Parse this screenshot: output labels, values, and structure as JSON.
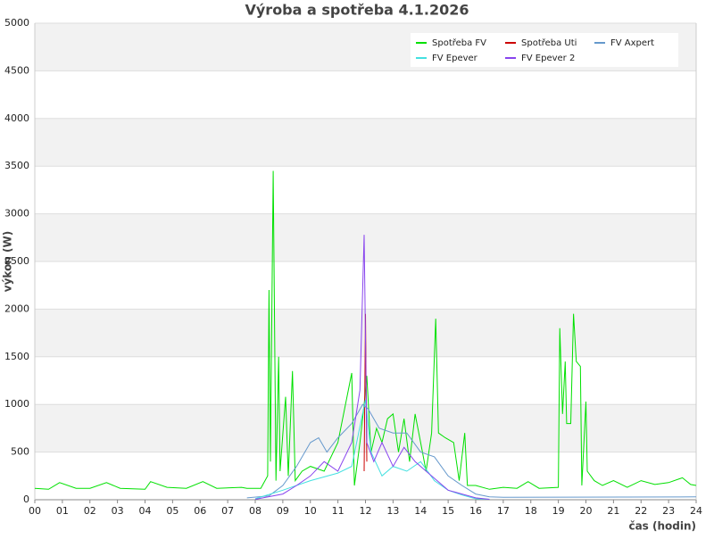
{
  "chart_data": {
    "type": "line",
    "title": "Výroba a spotřeba 4.1.2026",
    "x_label": "čas (hodin)",
    "y_label": "výkon (W)",
    "xlim": [
      0,
      24
    ],
    "ylim": [
      0,
      5000
    ],
    "xticks": [
      {
        "value": 0,
        "label": "00"
      },
      {
        "value": 1,
        "label": "01"
      },
      {
        "value": 2,
        "label": "02"
      },
      {
        "value": 3,
        "label": "03"
      },
      {
        "value": 4,
        "label": "04"
      },
      {
        "value": 5,
        "label": "05"
      },
      {
        "value": 6,
        "label": "06"
      },
      {
        "value": 7,
        "label": "07"
      },
      {
        "value": 8,
        "label": "08"
      },
      {
        "value": 9,
        "label": "09"
      },
      10,
      11,
      12,
      13,
      14,
      15,
      16,
      17,
      18,
      19,
      20,
      21,
      22,
      23,
      24
    ],
    "yticks": [
      0,
      500,
      1000,
      1500,
      2000,
      2500,
      3000,
      3500,
      4000,
      4500,
      5000
    ],
    "grid": true,
    "legend": "upper right",
    "series": [
      {
        "name": "Spotřeba FV",
        "color": "#00e000",
        "x": [
          0,
          0.5,
          0.9,
          1.5,
          2,
          2.6,
          3.1,
          4,
          4.2,
          4.8,
          5.5,
          6.1,
          6.6,
          7.5,
          7.7,
          8.2,
          8.45,
          8.5,
          8.55,
          8.65,
          8.75,
          8.85,
          8.9,
          9.1,
          9.2,
          9.35,
          9.45,
          9.7,
          10,
          10.5,
          11,
          11.5,
          11.6,
          11.8,
          11.95,
          12.05,
          12.2,
          12.4,
          12.6,
          12.8,
          13,
          13.2,
          13.4,
          13.6,
          13.8,
          14,
          14.2,
          14.4,
          14.55,
          14.65,
          14.9,
          15.2,
          15.4,
          15.6,
          15.7,
          16,
          16.5,
          17,
          17.5,
          17.9,
          18.3,
          19,
          19.05,
          19.15,
          19.25,
          19.3,
          19.45,
          19.55,
          19.65,
          19.8,
          19.85,
          20,
          20.05,
          20.3,
          20.6,
          21,
          21.5,
          22,
          22.5,
          23,
          23.5,
          23.8,
          24
        ],
        "values": [
          120,
          110,
          180,
          120,
          120,
          180,
          120,
          110,
          190,
          130,
          120,
          190,
          120,
          130,
          120,
          120,
          250,
          2200,
          400,
          3450,
          200,
          1500,
          300,
          1080,
          250,
          1350,
          200,
          300,
          350,
          300,
          600,
          1330,
          150,
          600,
          1000,
          1300,
          500,
          750,
          600,
          850,
          900,
          500,
          850,
          400,
          900,
          600,
          300,
          700,
          1900,
          700,
          650,
          600,
          200,
          700,
          150,
          150,
          110,
          130,
          120,
          190,
          120,
          130,
          1800,
          900,
          1450,
          800,
          800,
          1950,
          1450,
          1400,
          150,
          1030,
          300,
          200,
          150,
          200,
          130,
          200,
          160,
          180,
          230,
          160,
          150
        ]
      },
      {
        "name": "Spotřeba Uti",
        "color": "#cc0000",
        "x": [
          11.95,
          12,
          12.05
        ],
        "values": [
          300,
          1950,
          400
        ]
      },
      {
        "name": "FV Axpert",
        "color": "#6699cc",
        "x": [
          7.7,
          8.5,
          9,
          9.5,
          10,
          10.3,
          10.6,
          11,
          11.5,
          11.9,
          12.1,
          12.5,
          13,
          13.5,
          14,
          14.5,
          15,
          15.5,
          16,
          16.5,
          17,
          24
        ],
        "values": [
          20,
          40,
          150,
          350,
          600,
          650,
          500,
          650,
          800,
          1000,
          950,
          750,
          700,
          700,
          500,
          450,
          250,
          150,
          60,
          30,
          25,
          30
        ]
      },
      {
        "name": "FV Epever",
        "color": "#44e0e0",
        "x": [
          8,
          9,
          10,
          11,
          11.5,
          12,
          12.2,
          12.6,
          13,
          13.5,
          14,
          14.5,
          15,
          15.5,
          16,
          16.5
        ],
        "values": [
          10,
          100,
          200,
          280,
          350,
          1050,
          500,
          250,
          350,
          300,
          400,
          200,
          100,
          50,
          10,
          5
        ]
      },
      {
        "name": "FV Epever 2",
        "color": "#8844ee",
        "x": [
          8,
          9,
          9.5,
          10,
          10.5,
          11,
          11.5,
          11.8,
          11.95,
          12.05,
          12.3,
          12.6,
          13,
          13.4,
          13.8,
          14.2,
          14.6,
          15,
          15.5,
          16,
          16.5
        ],
        "values": [
          5,
          60,
          150,
          250,
          400,
          300,
          600,
          1150,
          2780,
          600,
          400,
          600,
          350,
          550,
          400,
          300,
          200,
          100,
          60,
          20,
          5
        ]
      }
    ]
  }
}
